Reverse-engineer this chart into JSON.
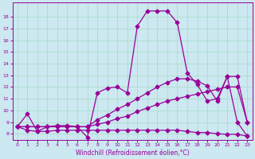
{
  "xlabel": "Windchill (Refroidissement éolien,°C)",
  "bg_color": "#cce8f0",
  "line_color": "#990099",
  "grid_color": "#aaddcc",
  "xlim": [
    -0.5,
    23.5
  ],
  "ylim": [
    7.5,
    19.2
  ],
  "xticks": [
    0,
    1,
    2,
    3,
    4,
    5,
    6,
    7,
    8,
    9,
    10,
    11,
    12,
    13,
    14,
    15,
    16,
    17,
    18,
    19,
    20,
    21,
    22,
    23
  ],
  "yticks": [
    8,
    9,
    10,
    11,
    12,
    13,
    14,
    15,
    16,
    17,
    18
  ],
  "series": [
    {
      "x": [
        0,
        1,
        2,
        3,
        4,
        5,
        6,
        7,
        8,
        9,
        10,
        11,
        12,
        13,
        14,
        15,
        16,
        17,
        18,
        19,
        20,
        21,
        22,
        23
      ],
      "y": [
        8.6,
        8.3,
        8.2,
        8.2,
        8.3,
        8.3,
        8.3,
        8.3,
        8.3,
        8.3,
        8.3,
        8.3,
        8.3,
        8.3,
        8.3,
        8.3,
        8.3,
        8.2,
        8.1,
        8.1,
        8.0,
        7.95,
        7.95,
        7.8
      ],
      "style": "-",
      "marker": "D",
      "markersize": 2.5
    },
    {
      "x": [
        0,
        1,
        2,
        3,
        4,
        5,
        6,
        7,
        8,
        9,
        10,
        11,
        12,
        13,
        14,
        15,
        16,
        17,
        18,
        19,
        20,
        21,
        22,
        23
      ],
      "y": [
        8.6,
        8.6,
        8.6,
        8.6,
        8.6,
        8.6,
        8.6,
        8.6,
        8.8,
        9.0,
        9.3,
        9.5,
        9.9,
        10.2,
        10.5,
        10.8,
        11.0,
        11.2,
        11.4,
        11.6,
        11.8,
        12.0,
        12.0,
        9.0
      ],
      "style": "-",
      "marker": "D",
      "markersize": 2.5
    },
    {
      "x": [
        0,
        1,
        2,
        3,
        4,
        5,
        6,
        7,
        8,
        9,
        10,
        11,
        12,
        13,
        14,
        15,
        16,
        17,
        18,
        19,
        20,
        21,
        22,
        23
      ],
      "y": [
        8.6,
        8.6,
        8.6,
        8.6,
        8.6,
        8.6,
        8.6,
        8.6,
        9.2,
        9.6,
        10.1,
        10.5,
        11.0,
        11.5,
        12.0,
        12.4,
        12.7,
        12.7,
        12.5,
        12.1,
        10.8,
        12.9,
        12.9,
        9.0
      ],
      "style": "-",
      "marker": "D",
      "markersize": 2.5
    },
    {
      "x": [
        0,
        1,
        2,
        3,
        4,
        5,
        6,
        7,
        8,
        9,
        10,
        11,
        12,
        13,
        14,
        15,
        16,
        17,
        18,
        19,
        20,
        21,
        22,
        23
      ],
      "y": [
        8.6,
        9.7,
        8.2,
        8.6,
        8.7,
        8.7,
        8.6,
        7.7,
        11.5,
        11.9,
        12.0,
        11.5,
        17.2,
        18.5,
        18.5,
        18.5,
        17.5,
        13.2,
        12.2,
        10.8,
        11.0,
        12.9,
        9.0,
        7.8
      ],
      "style": "-",
      "marker": "D",
      "markersize": 2.5
    }
  ]
}
